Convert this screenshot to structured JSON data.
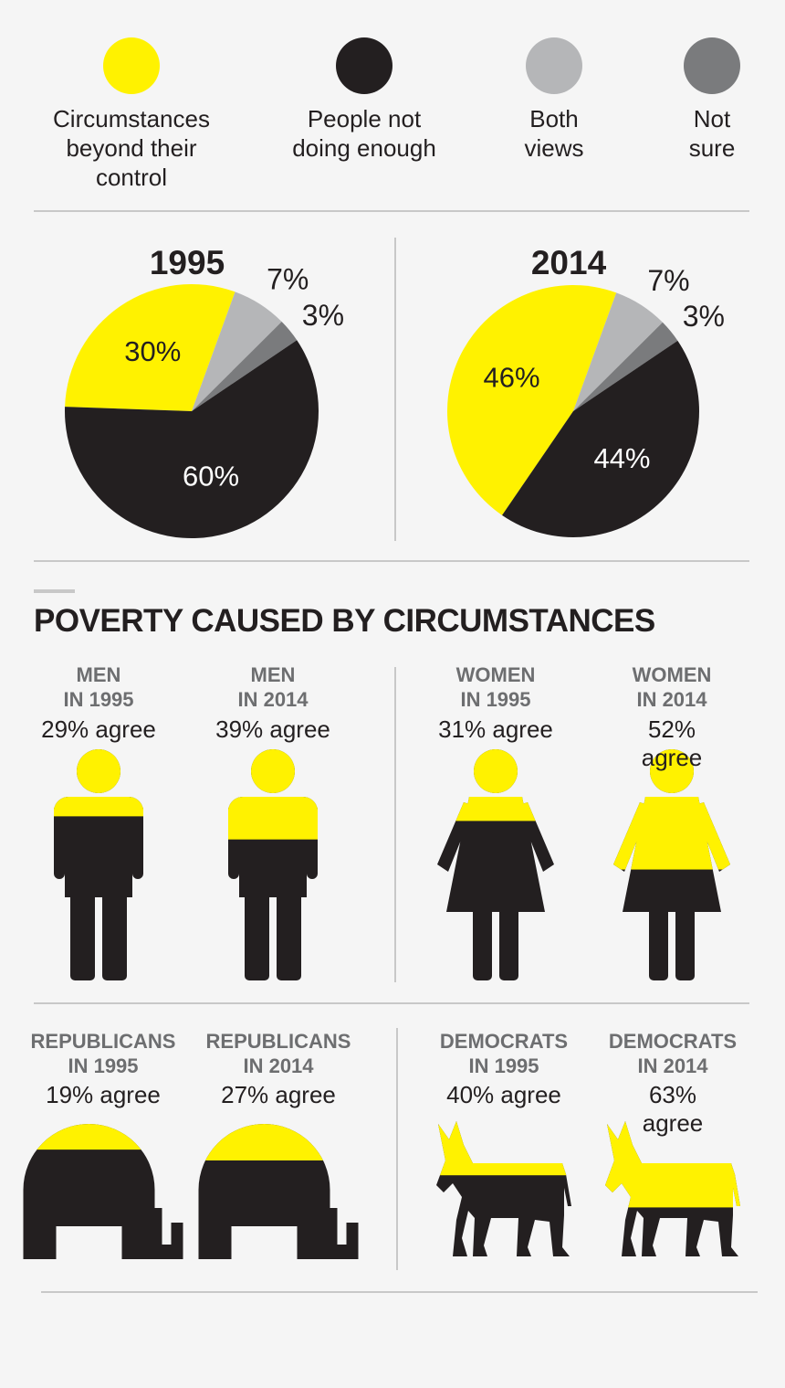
{
  "chart_data": [
    {
      "type": "pie",
      "title": "1995",
      "categories": [
        "Circumstances\nbeyond their\ncontrol",
        "People not\ndoing enough",
        "Both\nviews",
        "Not\nsure"
      ],
      "values": [
        30,
        60,
        7,
        3
      ],
      "value_labels": [
        "30%",
        "60%",
        "7%",
        "3%"
      ],
      "colors": [
        "#fff200",
        "#231f20",
        "#b5b6b8",
        "#7a7b7d"
      ]
    },
    {
      "type": "pie",
      "title": "2014",
      "values": [
        46,
        44,
        7,
        3
      ],
      "value_labels": [
        "46%",
        "44%",
        "7%",
        "3%"
      ],
      "colors": [
        "#fff200",
        "#231f20",
        "#b5b6b8",
        "#7a7b7d"
      ]
    },
    {
      "type": "pictograph",
      "title": "POVERTY CAUSED BY CIRCUMSTANCES",
      "categories": [
        "MEN\nIN 1995",
        "MEN\nIN 2014",
        "WOMEN\nIN 1995",
        "WOMEN\nIN 2014",
        "REPUBLICANS\nIN 1995",
        "REPUBLICANS\nIN 2014",
        "DEMOCRATS\nIN 1995",
        "DEMOCRATS\nIN 2014"
      ],
      "values": [
        29,
        39,
        31,
        52,
        19,
        27,
        40,
        63
      ],
      "value_labels": [
        "29% agree",
        "39% agree",
        "31% agree",
        "52% agree",
        "19% agree",
        "27% agree",
        "40% agree",
        "63% agree"
      ],
      "color": "#fff200",
      "base_color": "#231f20"
    }
  ]
}
